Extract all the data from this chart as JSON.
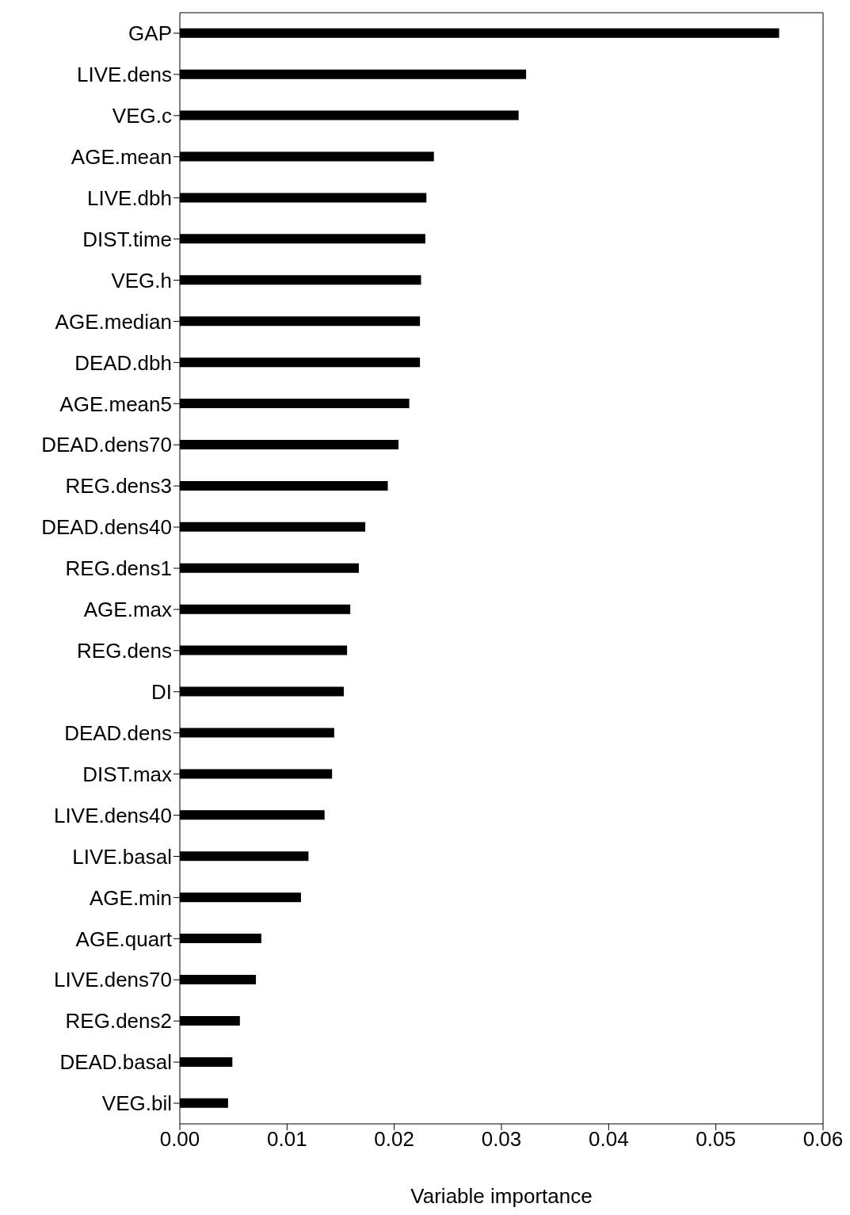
{
  "chart_data": {
    "type": "bar",
    "orientation": "horizontal",
    "xlabel": "Variable importance",
    "categories": [
      "GAP",
      "LIVE.dens",
      "VEG.c",
      "AGE.mean",
      "LIVE.dbh",
      "DIST.time",
      "VEG.h",
      "AGE.median",
      "DEAD.dbh",
      "AGE.mean5",
      "DEAD.dens70",
      "REG.dens3",
      "DEAD.dens40",
      "REG.dens1",
      "AGE.max",
      "REG.dens",
      "DI",
      "DEAD.dens",
      "DIST.max",
      "LIVE.dens40",
      "LIVE.basal",
      "AGE.min",
      "AGE.quart",
      "LIVE.dens70",
      "REG.dens2",
      "DEAD.basal",
      "VEG.bil"
    ],
    "values": [
      0.0559,
      0.0323,
      0.0316,
      0.0237,
      0.023,
      0.0229,
      0.0225,
      0.0224,
      0.0224,
      0.0214,
      0.0204,
      0.0194,
      0.0173,
      0.0167,
      0.0159,
      0.0156,
      0.0153,
      0.0144,
      0.0142,
      0.0135,
      0.012,
      0.0113,
      0.0076,
      0.0071,
      0.0056,
      0.0049,
      0.0045
    ],
    "color": "#000000",
    "xlim": [
      0,
      0.06
    ],
    "xticks": [
      {
        "value": 0,
        "label": "0.00"
      },
      {
        "value": 0.01,
        "label": "0.01"
      },
      {
        "value": 0.02,
        "label": "0.02"
      },
      {
        "value": 0.03,
        "label": "0.03"
      },
      {
        "value": 0.04,
        "label": "0.04"
      },
      {
        "value": 0.05,
        "label": "0.05"
      },
      {
        "value": 0.06,
        "label": "0.06"
      }
    ],
    "grid": false,
    "legend": false
  }
}
